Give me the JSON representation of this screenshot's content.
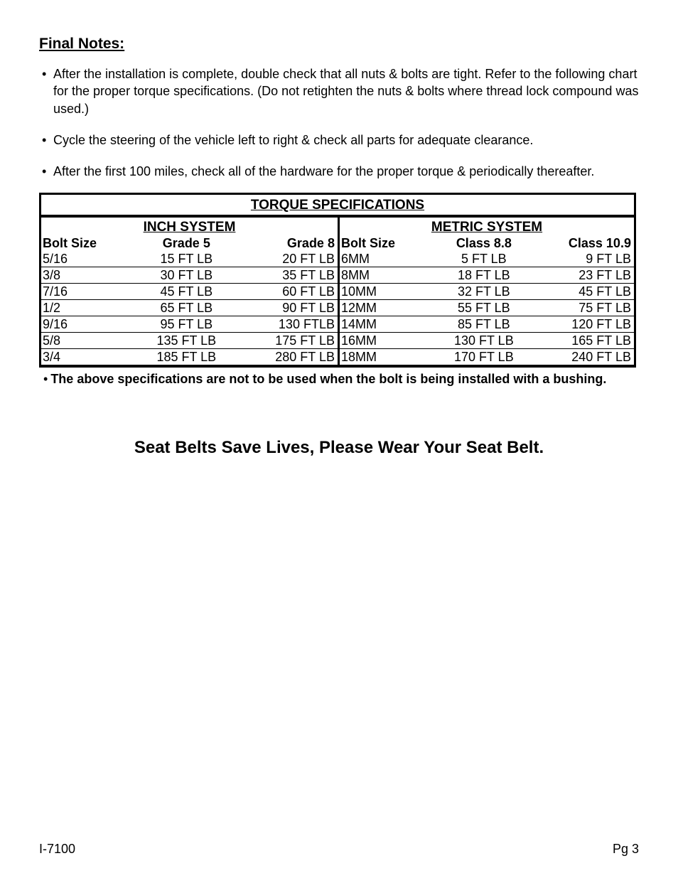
{
  "heading": "Final Notes:",
  "bullets": [
    "After the installation is complete, double check that all nuts & bolts are tight. Refer to the following chart for the proper torque specifications. (Do not retighten the nuts & bolts where thread lock compound was used.)",
    "Cycle the steering of the vehicle left to right & check all parts for adequate clearance.",
    "After the first 100 miles, check all of the hardware for the proper torque & periodically thereafter."
  ],
  "table": {
    "title": "TORQUE SPECIFICATIONS",
    "inch": {
      "system_label": "INCH SYSTEM",
      "size_label": "Bolt Size",
      "col1_label": "Grade 5",
      "col2_label": "Grade 8",
      "rows": [
        {
          "size": "5/16",
          "g1": "15 FT LB",
          "g2": "20 FT LB"
        },
        {
          "size": "3/8",
          "g1": "30 FT LB",
          "g2": "35 FT LB"
        },
        {
          "size": "7/16",
          "g1": "45 FT LB",
          "g2": "60 FT LB"
        },
        {
          "size": "1/2",
          "g1": "65 FT LB",
          "g2": "90 FT LB"
        },
        {
          "size": "9/16",
          "g1": "95 FT LB",
          "g2": "130 FTLB"
        },
        {
          "size": "5/8",
          "g1": "135 FT LB",
          "g2": "175 FT LB"
        },
        {
          "size": "3/4",
          "g1": "185 FT LB",
          "g2": "280 FT LB"
        }
      ]
    },
    "metric": {
      "system_label": "METRIC SYSTEM",
      "size_label": "Bolt Size",
      "col1_label": "Class 8.8",
      "col2_label": "Class 10.9",
      "rows": [
        {
          "size": "6MM",
          "g1": "5 FT LB",
          "g2": "9 FT LB"
        },
        {
          "size": "8MM",
          "g1": "18 FT LB",
          "g2": "23 FT LB"
        },
        {
          "size": "10MM",
          "g1": "32 FT LB",
          "g2": "45 FT LB"
        },
        {
          "size": "12MM",
          "g1": "55 FT LB",
          "g2": "75 FT LB"
        },
        {
          "size": "14MM",
          "g1": "85 FT LB",
          "g2": "120 FT LB"
        },
        {
          "size": "16MM",
          "g1": "130 FT LB",
          "g2": "165 FT LB"
        },
        {
          "size": "18MM",
          "g1": "170 FT LB",
          "g2": "240 FT LB"
        }
      ]
    }
  },
  "spec_note": "The above specifications are not to be used when the bolt is being installed with a bushing.",
  "safety": "Seat Belts Save Lives, Please Wear Your Seat Belt.",
  "footer_left": "I-7100",
  "footer_right": "Pg 3"
}
